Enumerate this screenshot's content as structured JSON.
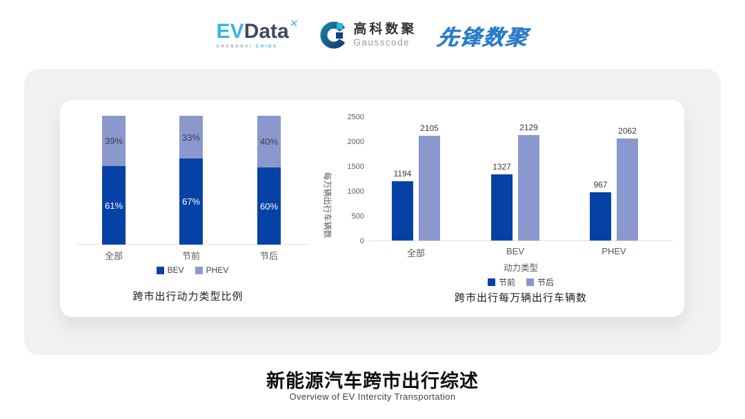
{
  "header": {
    "evdata": {
      "ev": "EV",
      "data": "Data",
      "star": "✕",
      "region": "SHANGHAI",
      "country": "CHINA"
    },
    "gausscode": {
      "name_cn": "高科数聚",
      "name_en": "Gausscode"
    },
    "pioneer": {
      "name": "先锋数聚"
    }
  },
  "colors": {
    "bev_dark_blue": "#0642a6",
    "phev_light_purple": "#8b98ce",
    "accent_cyan": "#35b5e6",
    "logo_slate": "#3d4a5c",
    "pioneer_blue": "#2a7cc8",
    "panel_gray": "#f1f1f2"
  },
  "chart_data": [
    {
      "type": "bar",
      "variant": "stacked-percent",
      "title": "跨市出行动力类型比例",
      "categories": [
        "全部",
        "节前",
        "节后"
      ],
      "series": [
        {
          "name": "BEV",
          "values": [
            61,
            67,
            60
          ],
          "color": "#0642a6",
          "label_color": "#ffffff"
        },
        {
          "name": "PHEV",
          "values": [
            39,
            33,
            40
          ],
          "color": "#8b98ce",
          "label_color": "#3c3c50"
        }
      ],
      "value_suffix": "%",
      "ylim": [
        0,
        100
      ],
      "legend_position": "bottom",
      "grid": false
    },
    {
      "type": "bar",
      "variant": "grouped",
      "title": "跨市出行每万辆出行车辆数",
      "categories": [
        "全部",
        "BEV",
        "PHEV"
      ],
      "xlabel": "动力类型",
      "ylabel": "每万辆出行车辆数",
      "yticks": [
        0,
        500,
        1000,
        1500,
        2000,
        2500
      ],
      "ylim": [
        0,
        2500
      ],
      "series": [
        {
          "name": "节前",
          "values": [
            1194,
            1327,
            967
          ],
          "color": "#0642a6"
        },
        {
          "name": "节后",
          "values": [
            2105,
            2129,
            2062
          ],
          "color": "#8b98ce"
        }
      ],
      "legend_position": "bottom",
      "grid": false
    }
  ],
  "footer": {
    "title": "新能源汽车跨市出行综述",
    "subtitle": "Overview of EV Intercity Transportation"
  }
}
